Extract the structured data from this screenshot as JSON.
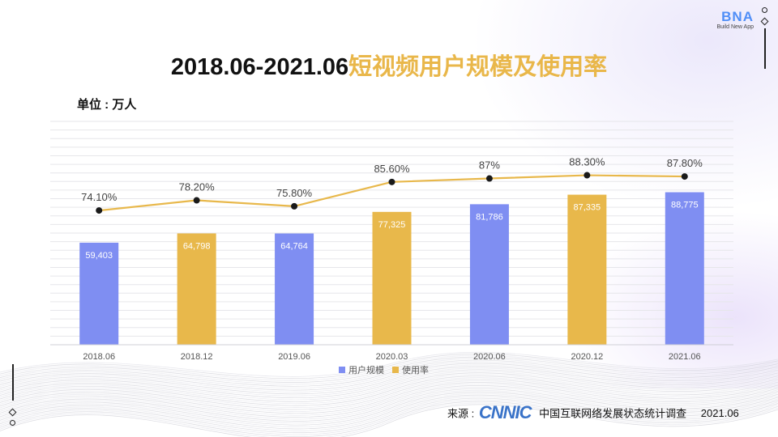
{
  "title_prefix": "2018.06-2021.06",
  "title_suffix": "短视频用户规模及使用率",
  "unit_label": "单位 : 万人",
  "logo": {
    "text": "BNA",
    "sub": "Build New App"
  },
  "source": {
    "label": "来源 :",
    "org_logo": "CNNIC",
    "org_name": "中国互联网络发展状态统计调查",
    "date": "2021.06"
  },
  "colors": {
    "bar_blue": "#7f8ef2",
    "bar_orange": "#e8b84b",
    "line": "#e8b84b",
    "dot": "#1a1a1a"
  },
  "chart_data": {
    "type": "bar",
    "title": "2018.06-2021.06短视频用户规模及使用率",
    "ylabel": "单位 : 万人",
    "categories": [
      "2018.06",
      "2018.12",
      "2019.06",
      "2020.03",
      "2020.06",
      "2020.12",
      "2021.06"
    ],
    "series": [
      {
        "name": "用户规模",
        "type": "bar",
        "values": [
          59403,
          64798,
          64764,
          77325,
          81786,
          87335,
          88775
        ],
        "labels": [
          "59,403",
          "64,798",
          "64,764",
          "77,325",
          "81,786",
          "87,335",
          "88,775"
        ]
      },
      {
        "name": "使用率",
        "type": "line",
        "values": [
          74.1,
          78.2,
          75.8,
          85.6,
          87,
          88.3,
          87.8
        ],
        "labels": [
          "74.10%",
          "78.20%",
          "75.80%",
          "85.60%",
          "87%",
          "88.30%",
          "87.80%"
        ]
      }
    ],
    "bar_colors": [
      "blue",
      "orange",
      "blue",
      "orange",
      "blue",
      "orange",
      "blue"
    ],
    "ylim": [
      0,
      130000
    ],
    "y2lim": [
      20,
      110
    ],
    "grid": true,
    "legend": "bottom"
  }
}
